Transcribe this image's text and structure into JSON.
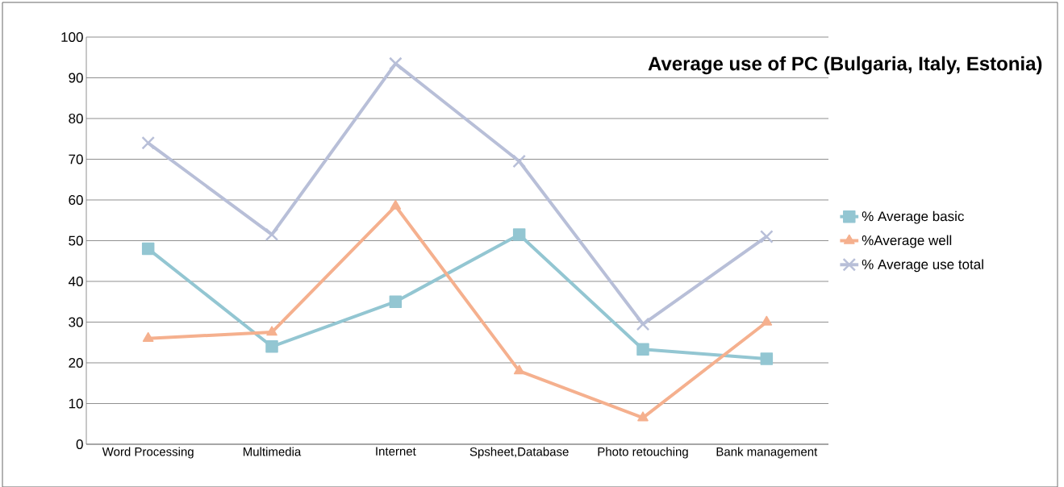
{
  "chart_data": {
    "type": "line",
    "title": "Average use of PC (Bulgaria, Italy, Estonia)",
    "categories": [
      "Word Processing",
      "Multimedia",
      "Internet",
      "Spsheet,Database",
      "Photo retouching",
      "Bank management"
    ],
    "series": [
      {
        "name": "% Average basic",
        "color": "#93c6d2",
        "marker": "square",
        "values": [
          48,
          24,
          35,
          51.5,
          23.3,
          21
        ]
      },
      {
        "name": "%Average well",
        "color": "#f5b08e",
        "marker": "triangle",
        "values": [
          26,
          27.5,
          58.5,
          18,
          6.5,
          30
        ]
      },
      {
        "name": "% Average use total",
        "color": "#b8bfd8",
        "marker": "cross",
        "values": [
          74,
          51.5,
          93.5,
          69.5,
          29.5,
          51
        ]
      }
    ],
    "ylim": [
      0,
      100
    ],
    "yticks": [
      0,
      10,
      20,
      30,
      40,
      50,
      60,
      70,
      80,
      90,
      100
    ],
    "grid": "y",
    "legend": "right",
    "line_style": "solid"
  }
}
